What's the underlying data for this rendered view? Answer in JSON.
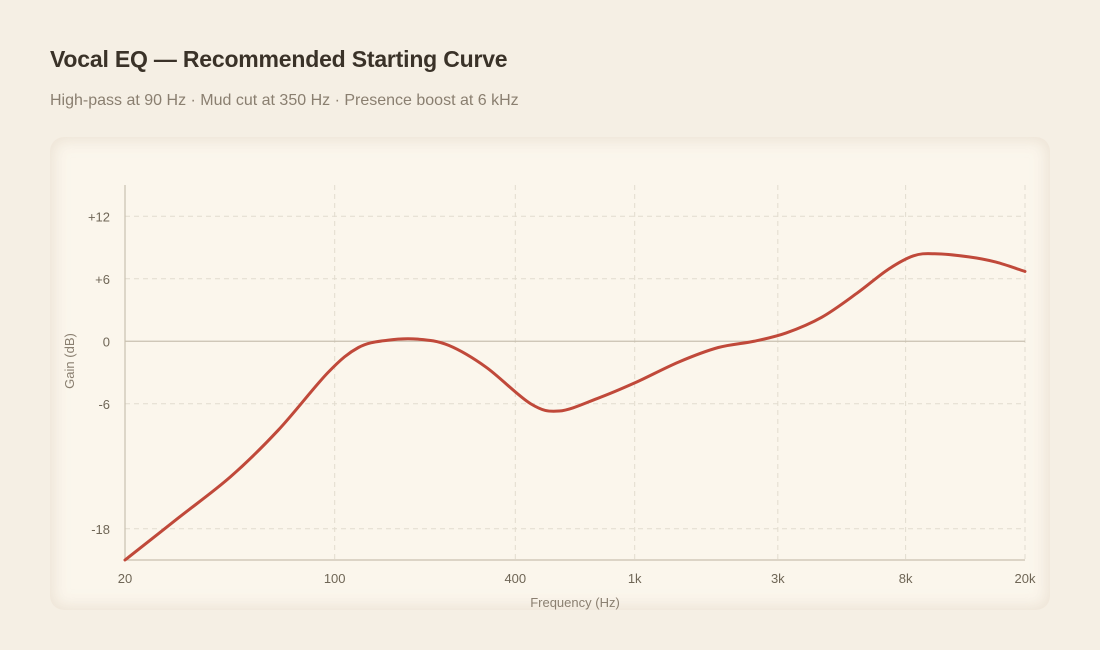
{
  "header": {
    "title": "Vocal EQ — Recommended Starting Curve",
    "subtitle": "High-pass at 90 Hz · Mud cut at 350 Hz · Presence boost at 6 kHz"
  },
  "colors": {
    "curve": "#c0493a",
    "grid": "#e2dccf",
    "axis": "#c9c0b0",
    "zero_line": "#c9c0b0"
  },
  "chart_data": {
    "type": "line",
    "xlabel": "Frequency (Hz)",
    "ylabel": "Gain (dB)",
    "x_scale": "log",
    "xlim": [
      20,
      20000
    ],
    "ylim": [
      -21,
      15
    ],
    "grid": true,
    "x_ticks": [
      {
        "value": 20,
        "label": "20"
      },
      {
        "value": 100,
        "label": "100"
      },
      {
        "value": 400,
        "label": "400"
      },
      {
        "value": 1000,
        "label": "1k"
      },
      {
        "value": 3000,
        "label": "3k"
      },
      {
        "value": 8000,
        "label": "8k"
      },
      {
        "value": 20000,
        "label": "20k"
      }
    ],
    "y_ticks": [
      {
        "value": 12,
        "label": "+12"
      },
      {
        "value": 6,
        "label": "+6"
      },
      {
        "value": 0,
        "label": "0"
      },
      {
        "value": -6,
        "label": "-6"
      },
      {
        "value": -18,
        "label": "-18"
      }
    ],
    "series": [
      {
        "points": [
          [
            20,
            -21
          ],
          [
            30,
            -17
          ],
          [
            45,
            -13
          ],
          [
            65,
            -8.5
          ],
          [
            95,
            -3
          ],
          [
            120,
            -0.6
          ],
          [
            150,
            0.1
          ],
          [
            190,
            0.2
          ],
          [
            240,
            -0.4
          ],
          [
            320,
            -2.5
          ],
          [
            450,
            -6
          ],
          [
            560,
            -6.7
          ],
          [
            750,
            -5.5
          ],
          [
            1000,
            -4
          ],
          [
            1400,
            -2
          ],
          [
            1900,
            -0.6
          ],
          [
            2500,
            0
          ],
          [
            3200,
            0.8
          ],
          [
            4200,
            2.3
          ],
          [
            5500,
            4.6
          ],
          [
            7000,
            6.9
          ],
          [
            8500,
            8.2
          ],
          [
            10000,
            8.4
          ],
          [
            13000,
            8.1
          ],
          [
            16000,
            7.6
          ],
          [
            20000,
            6.7
          ]
        ]
      }
    ]
  }
}
